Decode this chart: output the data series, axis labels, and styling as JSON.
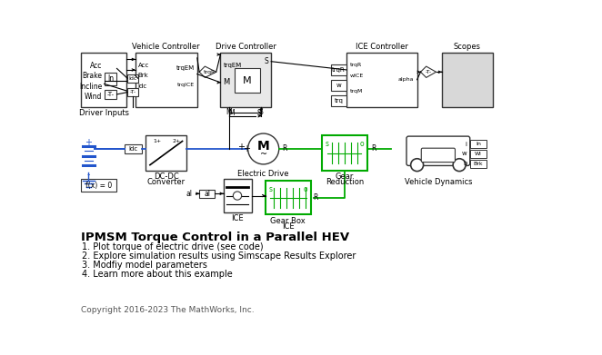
{
  "title": "IPMSM Torque Control in a Parallel HEV",
  "bg": "#ffffff",
  "bk": "#333333",
  "gr": "#00aa00",
  "bl": "#2255cc",
  "bullets": [
    "1. Plot torque of electric drive (see code)",
    "2. Explore simulation results using Simscape Results Explorer",
    "3. Modfiy model parameters",
    "4. Learn more about this example"
  ],
  "copyright": "Copyright 2016-2023 The MathWorks, Inc."
}
